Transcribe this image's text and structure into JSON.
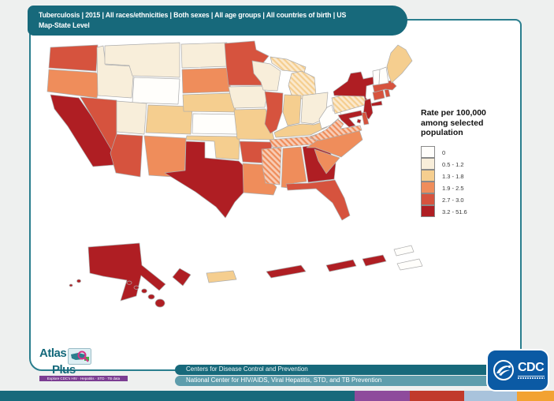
{
  "header": {
    "line1": "Tuberculosis | 2015 | All races/ethnicities | Both sexes | All age groups | All countries of birth | US",
    "line2": "Map-State Level"
  },
  "legend": {
    "title": "Rate per 100,000 among selected population",
    "classes": [
      {
        "label": "0",
        "color": "#FFFEFB"
      },
      {
        "label": "0.5 - 1.2",
        "color": "#F8EEDA"
      },
      {
        "label": "1.3 - 1.8",
        "color": "#F5CE8F"
      },
      {
        "label": "1.9 - 2.5",
        "color": "#EF8D5B"
      },
      {
        "label": "2.7 - 3.0",
        "color": "#D6533E"
      },
      {
        "label": "3.2 - 51.6",
        "color": "#AF1E23"
      }
    ]
  },
  "chart_data": {
    "type": "choropleth_map",
    "title": "Tuberculosis rate per 100,000 among selected population, 2015, by state",
    "legend_title": "Rate per 100,000 among selected population",
    "categories": [
      "0",
      "0.5 - 1.2",
      "1.3 - 1.8",
      "1.9 - 2.5",
      "2.7 - 3.0",
      "3.2 - 51.6"
    ],
    "states": {
      "WA": "2.7 - 3.0",
      "OR": "1.9 - 2.5",
      "CA": "3.2 - 51.6",
      "NV": "2.7 - 3.0",
      "ID": "0.5 - 1.2",
      "MT": "0.5 - 1.2",
      "WY": "0",
      "UT": "0.5 - 1.2",
      "CO": "1.3 - 1.8",
      "AZ": "2.7 - 3.0",
      "NM": "1.9 - 2.5",
      "ND": "0.5 - 1.2",
      "SD": "1.9 - 2.5",
      "NE": "1.3 - 1.8",
      "KS": "0",
      "OK": "1.3 - 1.8",
      "TX": "3.2 - 51.6",
      "MN": "2.7 - 3.0",
      "IA": "0.5 - 1.2",
      "MO": "1.3 - 1.8",
      "AR": "2.7 - 3.0",
      "LA": "1.9 - 2.5",
      "WI": "0.5 - 1.2",
      "IL": "2.7 - 3.0",
      "MI": "1.3 - 1.8",
      "IN": "1.3 - 1.8",
      "OH": "0.5 - 1.2",
      "KY": "1.3 - 1.8",
      "TN": "1.9 - 2.5",
      "MS": "1.9 - 2.5",
      "AL": "1.9 - 2.5",
      "GA": "3.2 - 51.6",
      "FL": "2.7 - 3.0",
      "SC": "1.9 - 2.5",
      "NC": "1.9 - 2.5",
      "VA": "1.9 - 2.5",
      "WV": "0",
      "PA": "1.3 - 1.8",
      "NY": "3.2 - 51.6",
      "NJ": "3.2 - 51.6",
      "DE": "2.7 - 3.0",
      "MD": "3.2 - 51.6",
      "DC": "3.2 - 51.6",
      "CT": "2.7 - 3.0",
      "RI": "2.7 - 3.0",
      "MA": "2.7 - 3.0",
      "VT": "0",
      "NH": "0",
      "ME": "1.3 - 1.8",
      "AK": "3.2 - 51.6",
      "HI": "3.2 - 51.6",
      "PR": "1.3 - 1.8",
      "VI": "0",
      "GU": "3.2 - 51.6",
      "AS": "3.2 - 51.6",
      "MP": "3.2 - 51.6"
    },
    "hatched_states": [
      "PA",
      "MI",
      "VA",
      "TN",
      "MS"
    ]
  },
  "footer": {
    "line1": "Centers for Disease Control and Prevention",
    "line2": "National Center for HIV/AIDS, Viral Hepatitis, STD, and TB Prevention"
  },
  "logos": {
    "atlas": {
      "line1": "Atlas",
      "line2": "Plus",
      "tagline": "Explore CDC's HIV · Hepatitis · STD · TB data"
    },
    "cdc": {
      "acronym": "CDC"
    }
  },
  "brand_strip_colors": [
    "#17697B",
    "#8E4B9C",
    "#C13A2B",
    "#A9C3DC",
    "#F2A232"
  ]
}
